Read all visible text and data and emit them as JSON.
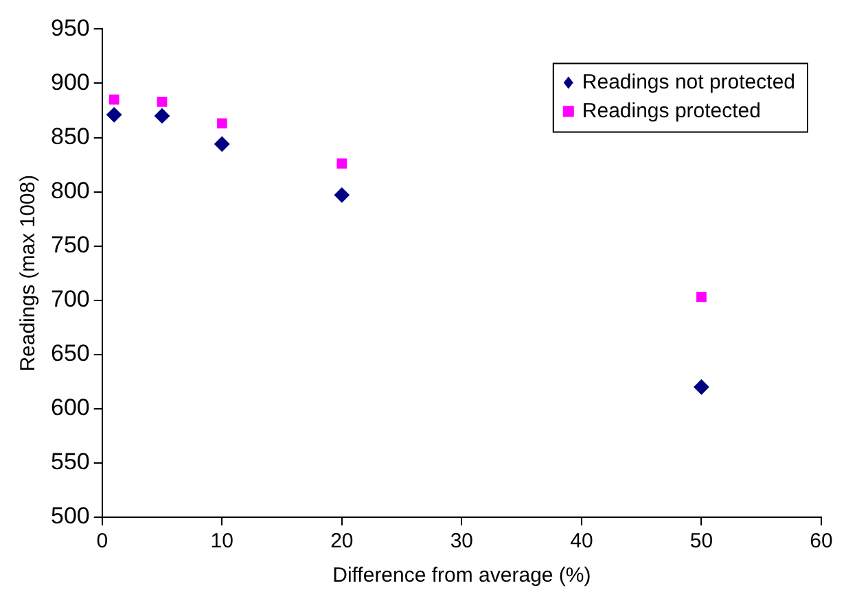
{
  "chart_data": {
    "type": "scatter",
    "xlabel": "Difference from average (%)",
    "ylabel": "Readings (max 1008)",
    "x": [
      1,
      5,
      10,
      20,
      50
    ],
    "series": [
      {
        "name": "Readings not protected",
        "color": "#000080",
        "marker": "diamond",
        "values": [
          871,
          870,
          844,
          797,
          620
        ]
      },
      {
        "name": "Readings protected",
        "color": "#ff00ff",
        "marker": "square",
        "values": [
          885,
          883,
          863,
          826,
          703
        ]
      }
    ],
    "xlim": [
      0,
      60
    ],
    "xticks": [
      0,
      10,
      20,
      30,
      40,
      50,
      60
    ],
    "ylim": [
      500,
      950
    ],
    "yticks": [
      500,
      550,
      600,
      650,
      700,
      750,
      800,
      850,
      900,
      950
    ],
    "grid": false,
    "legend": "top right"
  }
}
